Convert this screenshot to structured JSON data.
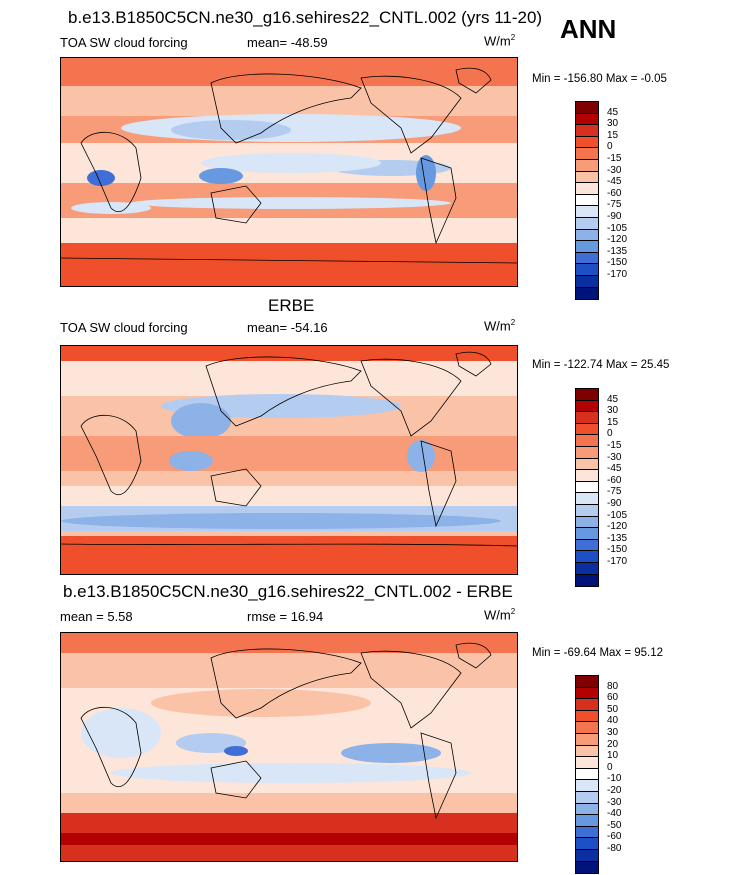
{
  "season": "ANN",
  "panels": [
    {
      "id": "model",
      "title": "b.e13.B1850C5CN.ne30_g16.sehires22_CNTL.002 (yrs 11-20)",
      "left_label": "TOA SW cloud forcing",
      "center_label": "mean= -48.59",
      "units": "W/m",
      "units_sup": "2",
      "minmax": "Min = -156.80 Max =  -0.05",
      "colorbar_labels": [
        "45",
        "30",
        "15",
        "0",
        "-15",
        "-30",
        "-45",
        "-60",
        "-75",
        "-90",
        "-105",
        "-120",
        "-135",
        "-150",
        "-170"
      ],
      "colorbar_colors": [
        "#7f0000",
        "#b30000",
        "#d7301f",
        "#ef4f2a",
        "#f4744f",
        "#f79b79",
        "#fac3a8",
        "#fde6d9",
        "#ffffff",
        "#d9e6f7",
        "#b3ccf0",
        "#8cb2e8",
        "#6699e0",
        "#3f6fd6",
        "#1f4fc4",
        "#0b2fa0",
        "#00137a"
      ]
    },
    {
      "id": "obs",
      "title": "ERBE",
      "left_label": "TOA SW cloud forcing",
      "center_label": "mean= -54.16",
      "units": "W/m",
      "units_sup": "2",
      "minmax": "Min = -122.74 Max =  25.45",
      "colorbar_labels": [
        "45",
        "30",
        "15",
        "0",
        "-15",
        "-30",
        "-45",
        "-60",
        "-75",
        "-90",
        "-105",
        "-120",
        "-135",
        "-150",
        "-170"
      ],
      "colorbar_colors": [
        "#7f0000",
        "#b30000",
        "#d7301f",
        "#ef4f2a",
        "#f4744f",
        "#f79b79",
        "#fac3a8",
        "#fde6d9",
        "#ffffff",
        "#d9e6f7",
        "#b3ccf0",
        "#8cb2e8",
        "#6699e0",
        "#3f6fd6",
        "#1f4fc4",
        "#0b2fa0",
        "#00137a"
      ]
    },
    {
      "id": "diff",
      "title": "b.e13.B1850C5CN.ne30_g16.sehires22_CNTL.002 - ERBE",
      "left_label": "mean =   5.58",
      "center_label": "rmse =  16.94",
      "units": "W/m",
      "units_sup": "2",
      "minmax": "Min = -69.64 Max =  95.12",
      "colorbar_labels": [
        "80",
        "60",
        "50",
        "40",
        "30",
        "20",
        "10",
        "0",
        "-10",
        "-20",
        "-30",
        "-40",
        "-50",
        "-60",
        "-80"
      ],
      "colorbar_colors": [
        "#7f0000",
        "#b30000",
        "#d7301f",
        "#ef4f2a",
        "#f4744f",
        "#f79b79",
        "#fac3a8",
        "#fde6d9",
        "#ffffff",
        "#d9e6f7",
        "#b3ccf0",
        "#8cb2e8",
        "#6699e0",
        "#3f6fd6",
        "#1f4fc4",
        "#0b2fa0",
        "#00137a"
      ]
    }
  ]
}
